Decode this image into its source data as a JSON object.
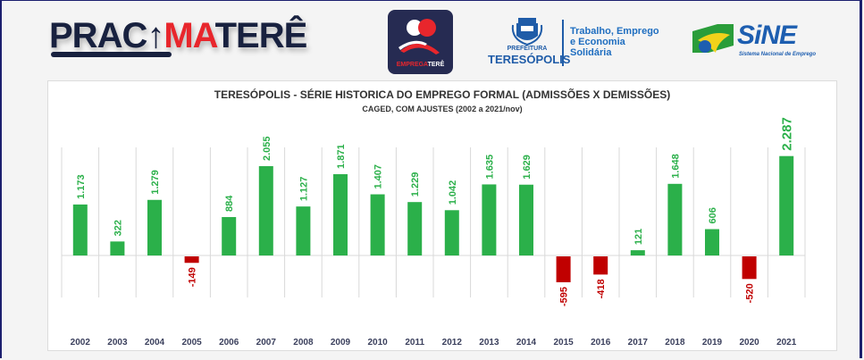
{
  "header": {
    "brand": {
      "part1": "PRAC",
      "arrow": "↑",
      "part2": "MA",
      "part3": "TERÊ"
    },
    "emprega_logo": {
      "part1": "EMPREGA",
      "part2": "TERÊ"
    },
    "prefeitura": {
      "small": "PREFEITURA",
      "big": "TERESÓPOLIS"
    },
    "secretaria": {
      "line1": "Trabalho, Emprego",
      "line2": "e Economia",
      "line3": "Solidária"
    },
    "sine": {
      "word": "SiNE",
      "sub": "Sistema Nacional de Emprego"
    }
  },
  "colors": {
    "positive": "#2bb04a",
    "negative": "#c00000",
    "positive_label": "#2bb04a",
    "negative_label": "#c00000",
    "axis_label": "#3a3f5c",
    "gridline": "#d9d9d9",
    "brand_dark": "#18213f",
    "brand_red": "#e8262c"
  },
  "chart_data": {
    "type": "bar",
    "title": "TERESÓPOLIS - SÉRIE HISTORICA DO EMPREGO FORMAL  (ADMISSÕES X DEMISSÕES)",
    "subtitle": "CAGED, COM AJUSTES  (2002 a 2021/nov)",
    "xlabel": "",
    "ylabel": "",
    "categories": [
      "2002",
      "2003",
      "2004",
      "2005",
      "2006",
      "2007",
      "2008",
      "2009",
      "2010",
      "2011",
      "2012",
      "2013",
      "2014",
      "2015",
      "2016",
      "2017",
      "2018",
      "2019",
      "2020",
      "2021"
    ],
    "values": [
      1173,
      322,
      1279,
      -149,
      884,
      2055,
      1127,
      1871,
      1407,
      1229,
      1042,
      1635,
      1629,
      -595,
      -418,
      121,
      1648,
      606,
      -520,
      2287
    ],
    "data_labels": [
      "1.173",
      "322",
      "1.279",
      "-149",
      "884",
      "2.055",
      "1.127",
      "1.871",
      "1.407",
      "1.229",
      "1.042",
      "1.635",
      "1.629",
      "-595",
      "-418",
      "121",
      "1.648",
      "606",
      "-520",
      "2.287"
    ],
    "ylim": [
      -700,
      2300
    ],
    "grid": "vertical",
    "legend": "none"
  }
}
